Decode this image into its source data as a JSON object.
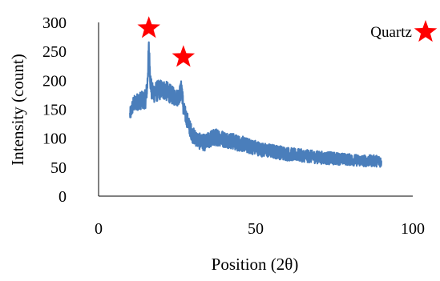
{
  "chart_data": {
    "type": "line",
    "title": "",
    "xlabel": "Position (2θ)",
    "ylabel": "Intensity (count)",
    "xlim": [
      0,
      100
    ],
    "ylim": [
      0,
      300
    ],
    "xticks": [
      "0",
      "50",
      "100"
    ],
    "yticks": [
      "0",
      "50",
      "100",
      "150",
      "200",
      "250",
      "300"
    ],
    "grid": false,
    "series": [
      {
        "color": "#4a7ebb",
        "x": [
          10,
          11,
          12,
          13,
          14,
          15,
          15.5,
          16,
          16.5,
          17,
          18,
          19,
          20,
          21,
          22,
          23,
          24,
          25,
          26,
          26.5,
          27,
          28,
          29,
          30,
          32,
          34,
          36,
          38,
          40,
          42,
          44,
          46,
          48,
          50,
          52,
          55,
          58,
          60,
          62,
          65,
          68,
          70,
          72,
          75,
          78,
          80,
          82,
          85,
          88,
          90
        ],
        "y": [
          140,
          158,
          162,
          165,
          165,
          168,
          190,
          255,
          200,
          178,
          180,
          182,
          185,
          183,
          180,
          176,
          172,
          170,
          178,
          188,
          150,
          135,
          118,
          105,
          95,
          92,
          100,
          102,
          98,
          96,
          92,
          90,
          86,
          84,
          80,
          78,
          75,
          73,
          72,
          70,
          68,
          67,
          66,
          65,
          64,
          63,
          62,
          61,
          61,
          60
        ],
        "noise": [
          12,
          14,
          15,
          15,
          16,
          16,
          16,
          18,
          18,
          18,
          18,
          18,
          17,
          17,
          17,
          16,
          15,
          15,
          16,
          16,
          15,
          14,
          14,
          14,
          14,
          14,
          15,
          15,
          14,
          14,
          14,
          13,
          13,
          13,
          12,
          12,
          12,
          12,
          11,
          11,
          11,
          11,
          11,
          11,
          10,
          10,
          10,
          10,
          10,
          10
        ]
      }
    ],
    "annotations": [
      {
        "type": "star-marker",
        "x": 16,
        "y": 290,
        "color": "#ff0000"
      },
      {
        "type": "star-marker",
        "x": 27,
        "y": 240,
        "color": "#ff0000"
      }
    ],
    "legend": {
      "position": "top-right",
      "entries": [
        {
          "label": "Quartz",
          "marker": "star",
          "color": "#ff0000"
        }
      ]
    }
  }
}
